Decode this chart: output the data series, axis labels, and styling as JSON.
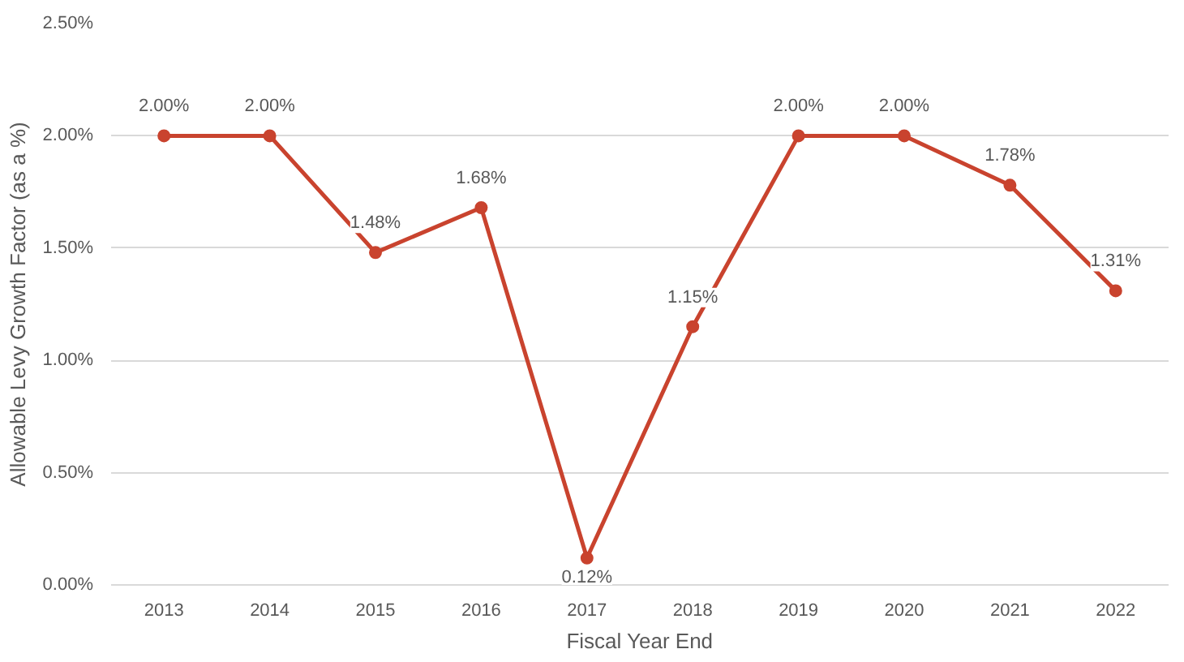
{
  "chart_data": {
    "type": "line",
    "xlabel": "Fiscal Year End",
    "ylabel": "Allowable Levy Growth Factor (as a %)",
    "categories": [
      "2013",
      "2014",
      "2015",
      "2016",
      "2017",
      "2018",
      "2019",
      "2020",
      "2021",
      "2022"
    ],
    "values": [
      2.0,
      2.0,
      1.48,
      1.68,
      0.12,
      1.15,
      2.0,
      2.0,
      1.78,
      1.31
    ],
    "value_labels": [
      "2.00%",
      "2.00%",
      "1.48%",
      "1.68%",
      "0.12%",
      "1.15%",
      "2.00%",
      "2.00%",
      "1.78%",
      "1.31%"
    ],
    "color": "#c9432e",
    "marker": "circle",
    "line_style": "solid",
    "grid": "y",
    "ylim": [
      0,
      2.5
    ],
    "yticks": [
      {
        "value": 0,
        "label": "0.00%"
      },
      {
        "value": 0.5,
        "label": "0.50%"
      },
      {
        "value": 1.0,
        "label": "1.00%"
      },
      {
        "value": 1.5,
        "label": "1.50%"
      },
      {
        "value": 2.0,
        "label": "2.00%"
      },
      {
        "value": 2.5,
        "label": "2.50%"
      }
    ]
  }
}
